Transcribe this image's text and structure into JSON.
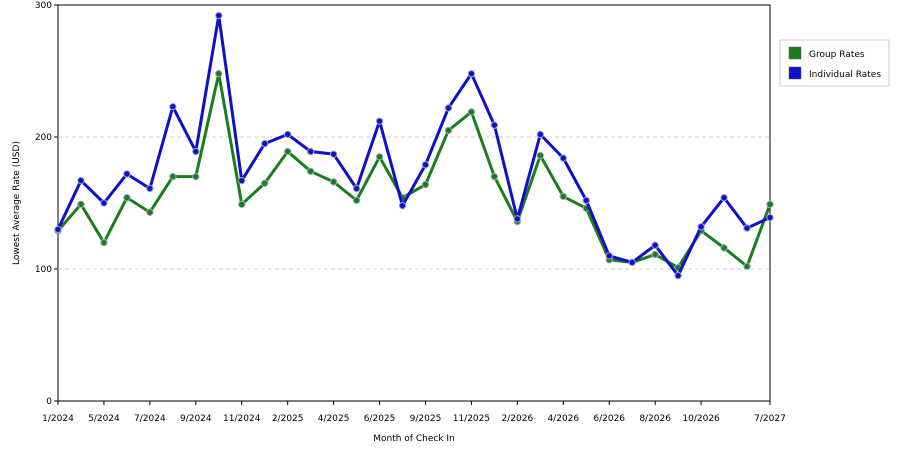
{
  "chart_data": {
    "type": "line",
    "y_label": "Lowest Average Rate (USD)",
    "x_label": "Month of Check In",
    "categories": [
      "1/2024",
      null,
      "5/2024",
      null,
      "7/2024",
      null,
      "9/2024",
      null,
      "11/2024",
      null,
      "2/2025",
      null,
      "4/2025",
      null,
      "6/2025",
      null,
      "9/2025",
      null,
      "11/2025",
      null,
      "2/2026",
      null,
      "4/2026",
      null,
      "6/2026",
      null,
      "8/2026",
      null,
      "10/2026",
      null,
      null,
      "7/2027"
    ],
    "series": [
      {
        "name": "Group Rates",
        "color": "#1a7f1a",
        "values": [
          129,
          149,
          120,
          154,
          143,
          170,
          170,
          248,
          149,
          165,
          189,
          174,
          166,
          152,
          185,
          154,
          164,
          205,
          219,
          170,
          136,
          186,
          155,
          146,
          107,
          105,
          111,
          101,
          129,
          116,
          102,
          149
        ]
      },
      {
        "name": "Individual Rates",
        "color": "#1010cc",
        "values": [
          130,
          167,
          150,
          172,
          161,
          223,
          189,
          292,
          167,
          195,
          202,
          189,
          187,
          161,
          212,
          148,
          179,
          222,
          248,
          209,
          138,
          202,
          184,
          152,
          110,
          105,
          118,
          95,
          132,
          154,
          131,
          139
        ]
      }
    ],
    "ylim": [
      0,
      300
    ],
    "yticks": [
      0,
      100,
      200,
      300
    ],
    "grid": true,
    "legend": "right"
  }
}
